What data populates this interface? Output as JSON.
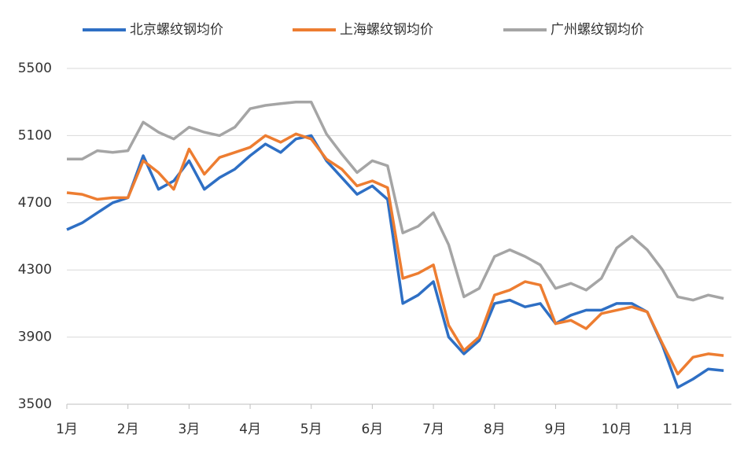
{
  "chart_data": {
    "type": "line",
    "categories": [
      "1月",
      null,
      null,
      null,
      "2月",
      null,
      null,
      null,
      "3月",
      null,
      null,
      null,
      "4月",
      null,
      null,
      null,
      "5月",
      null,
      null,
      null,
      "6月",
      null,
      null,
      null,
      "7月",
      null,
      null,
      null,
      "8月",
      null,
      null,
      null,
      "9月",
      null,
      null,
      null,
      "10月",
      null,
      null,
      null,
      "11月",
      null,
      null,
      null
    ],
    "series": [
      {
        "name": "北京螺纹钢均价",
        "color": "#2e6fc4",
        "values": [
          4540,
          4580,
          4640,
          4700,
          4730,
          4980,
          4780,
          4830,
          4950,
          4780,
          4850,
          4900,
          4980,
          5050,
          5000,
          5080,
          5100,
          4950,
          4850,
          4750,
          4800,
          4720,
          4100,
          4150,
          4230,
          3900,
          3800,
          3880,
          4100,
          4120,
          4080,
          4100,
          3980,
          4030,
          4060,
          4060,
          4100,
          4100,
          4050,
          3850,
          3600,
          3650,
          3710,
          3700
        ]
      },
      {
        "name": "上海螺纹钢均价",
        "color": "#ed7d31",
        "values": [
          4760,
          4750,
          4720,
          4730,
          4730,
          4950,
          4880,
          4780,
          5020,
          4870,
          4970,
          5000,
          5030,
          5100,
          5060,
          5110,
          5080,
          4960,
          4900,
          4800,
          4830,
          4790,
          4250,
          4280,
          4330,
          3970,
          3820,
          3900,
          4150,
          4180,
          4230,
          4210,
          3980,
          4000,
          3950,
          4040,
          4060,
          4080,
          4050,
          3860,
          3680,
          3780,
          3800,
          3790
        ]
      },
      {
        "name": "广州螺纹钢均价",
        "color": "#a5a5a5",
        "values": [
          4960,
          4960,
          5010,
          5000,
          5010,
          5180,
          5120,
          5080,
          5150,
          5120,
          5100,
          5150,
          5260,
          5280,
          5290,
          5300,
          5300,
          5110,
          4990,
          4880,
          4950,
          4920,
          4520,
          4560,
          4640,
          4450,
          4140,
          4190,
          4380,
          4420,
          4380,
          4330,
          4190,
          4220,
          4180,
          4250,
          4430,
          4500,
          4420,
          4300,
          4140,
          4120,
          4150,
          4130
        ]
      }
    ],
    "ylim": [
      3500,
      5500
    ],
    "yticks": [
      3500,
      3900,
      4300,
      4700,
      5100,
      5500
    ],
    "grid": true,
    "legend": "top"
  }
}
